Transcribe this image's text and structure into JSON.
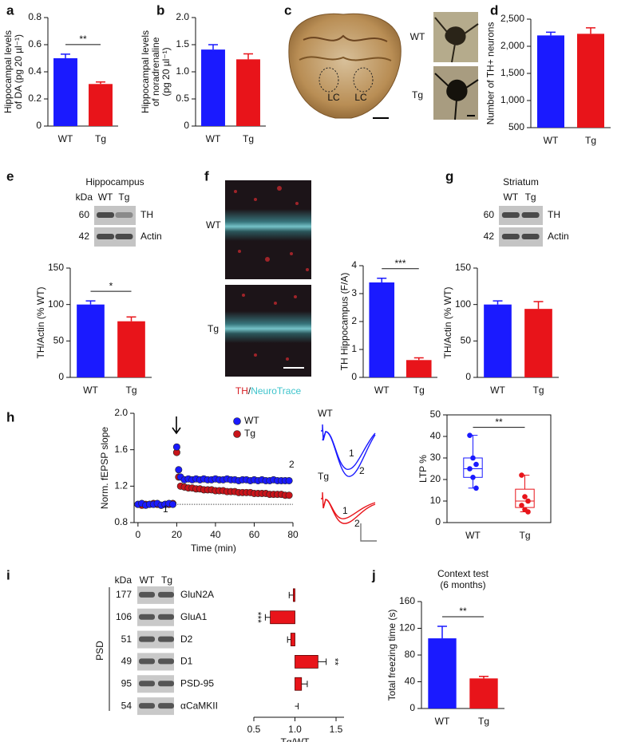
{
  "panel_labels": [
    "a",
    "b",
    "c",
    "d",
    "e",
    "f",
    "g",
    "h",
    "i",
    "j"
  ],
  "chart_data": [
    {
      "type": "bar",
      "categories": [
        "WT",
        "Tg"
      ],
      "values": [
        0.5,
        0.31
      ],
      "errors": [
        0.03,
        0.015
      ],
      "colors": [
        "#1a1aff",
        "#e8141a"
      ],
      "ylabel": [
        "Hippocampal levels",
        "of DA (pg 20 µl⁻¹)"
      ],
      "ylim": [
        0,
        0.8
      ],
      "yticks": [
        0,
        0.2,
        0.4,
        0.6,
        0.8
      ],
      "annotation": "**"
    },
    {
      "type": "bar",
      "categories": [
        "WT",
        "Tg"
      ],
      "values": [
        1.41,
        1.23
      ],
      "errors": [
        0.09,
        0.1
      ],
      "colors": [
        "#1a1aff",
        "#e8141a"
      ],
      "ylabel": [
        "Hippocampal levels",
        "of noradrenaline",
        "(pg 20 µl⁻¹)"
      ],
      "ylim": [
        0,
        2
      ],
      "yticks": [
        0,
        0.5,
        {
          "value": 1,
          "label": "1.0"
        },
        1.5,
        {
          "value": 2,
          "label": "2.0"
        }
      ]
    },
    {
      "type": "bar",
      "categories": [
        "WT",
        "Tg"
      ],
      "values": [
        2200,
        2230
      ],
      "errors": [
        60,
        110
      ],
      "colors": [
        "#1a1aff",
        "#e8141a"
      ],
      "ylabel": [
        "Number of TH+ neurons"
      ],
      "ylim": [
        500,
        2500
      ],
      "yticks": [
        500,
        {
          "value": 1000,
          "label": "1,000"
        },
        {
          "value": 1500,
          "label": "1,500"
        },
        {
          "value": 2000,
          "label": "2,000"
        },
        {
          "value": 2500,
          "label": "2,500"
        }
      ]
    },
    {
      "type": "bar",
      "categories": [
        "WT",
        "Tg"
      ],
      "values": [
        100,
        77
      ],
      "errors": [
        5,
        6
      ],
      "colors": [
        "#1a1aff",
        "#e8141a"
      ],
      "ylabel": [
        "TH/Actin (% WT)"
      ],
      "ylim": [
        0,
        150
      ],
      "yticks": [
        0,
        50,
        100,
        150
      ],
      "annotation": "*"
    },
    {
      "type": "bar",
      "categories": [
        "WT",
        "Tg"
      ],
      "values": [
        3.4,
        0.62
      ],
      "errors": [
        0.15,
        0.08
      ],
      "colors": [
        "#1a1aff",
        "#e8141a"
      ],
      "ylabel": [
        "TH Hippocampus (F/A)"
      ],
      "ylim": [
        0,
        4
      ],
      "yticks": [
        0,
        1,
        2,
        3,
        4
      ],
      "annotation": "***"
    },
    {
      "type": "bar",
      "categories": [
        "WT",
        "Tg"
      ],
      "values": [
        100,
        94
      ],
      "errors": [
        5,
        10
      ],
      "colors": [
        "#1a1aff",
        "#e8141a"
      ],
      "ylabel": [
        "TH/Actin (% WT)"
      ],
      "ylim": [
        0,
        150
      ],
      "yticks": [
        0,
        50,
        100,
        150
      ]
    },
    {
      "type": "scatter",
      "xlabel": "Time (min)",
      "ylabel": [
        "Norm. fEPSP slope"
      ],
      "x": [
        0,
        2,
        4,
        6,
        8,
        10,
        12,
        14,
        16,
        18,
        20,
        21,
        22,
        24,
        26,
        28,
        30,
        32,
        34,
        36,
        38,
        40,
        42,
        44,
        46,
        48,
        50,
        52,
        54,
        56,
        58,
        60,
        62,
        64,
        66,
        68,
        70,
        72,
        74,
        76,
        78
      ],
      "series": [
        {
          "name": "Tg",
          "color": "#c8141a",
          "values": [
            1.0,
            0.99,
            1.0,
            1.0,
            1.01,
            1.0,
            0.99,
            1.0,
            1.0,
            1.01,
            1.57,
            1.3,
            1.2,
            1.19,
            1.18,
            1.18,
            1.17,
            1.17,
            1.16,
            1.16,
            1.16,
            1.15,
            1.15,
            1.15,
            1.14,
            1.14,
            1.14,
            1.13,
            1.13,
            1.13,
            1.13,
            1.12,
            1.12,
            1.12,
            1.12,
            1.11,
            1.11,
            1.11,
            1.11,
            1.1,
            1.1
          ]
        },
        {
          "name": "WT",
          "color": "#1a1aff",
          "values": [
            1.0,
            1.01,
            0.99,
            1.0,
            1.0,
            1.01,
            0.99,
            1.0,
            1.01,
            1.0,
            1.63,
            1.38,
            1.3,
            1.27,
            1.28,
            1.27,
            1.28,
            1.27,
            1.28,
            1.27,
            1.27,
            1.28,
            1.27,
            1.27,
            1.28,
            1.27,
            1.27,
            1.26,
            1.27,
            1.27,
            1.26,
            1.27,
            1.26,
            1.27,
            1.26,
            1.26,
            1.27,
            1.26,
            1.26,
            1.26,
            1.26
          ]
        }
      ],
      "xlim": [
        -2,
        80
      ],
      "xticks": [
        0,
        20,
        40,
        60,
        80
      ],
      "ylim": [
        0.8,
        2
      ],
      "yticks": [
        0.8,
        1.2,
        1.6,
        {
          "value": 2,
          "label": "2.0"
        }
      ],
      "reference": 1,
      "legend": "upper right",
      "annotations": [
        "1",
        "2"
      ]
    },
    {
      "type": "box",
      "categories": [
        "WT",
        "Tg"
      ],
      "colors": [
        "#1a1aff",
        "#e8141a"
      ],
      "ylabel": [
        "LTP %"
      ],
      "boxes": [
        {
          "min": 16,
          "q1": 21,
          "median": 25,
          "q3": 30,
          "max": 40.5,
          "points": [
            40.5,
            30,
            27,
            25,
            21,
            16
          ]
        },
        {
          "min": 5,
          "q1": 7,
          "median": 10,
          "q3": 15.5,
          "max": 22,
          "points": [
            22,
            12,
            10,
            8,
            6,
            5
          ]
        }
      ],
      "ylim": [
        0,
        50
      ],
      "yticks": [
        0,
        10,
        20,
        30,
        40,
        50
      ],
      "annotation": "**"
    },
    {
      "type": "barh",
      "group_label": "PSD",
      "kda_header": "kDa",
      "lanes": [
        "WT",
        "Tg"
      ],
      "kda": [
        177,
        106,
        51,
        49,
        95,
        54
      ],
      "categories": [
        "GluN2A",
        "GluA1",
        "D2",
        "D1",
        "PSD-95",
        "αCaMKII"
      ],
      "values": [
        0.98,
        0.7,
        0.95,
        1.28,
        1.08,
        1.0
      ],
      "errors": [
        0.05,
        0.06,
        0.04,
        0.1,
        0.07,
        0.04
      ],
      "color": "#e8141a",
      "base": 1,
      "xlabel": "Tg/WT",
      "xlim": [
        0.5,
        1.5
      ],
      "xticks": [
        0.5,
        {
          "value": 1,
          "label": "1.0"
        },
        1.5
      ],
      "annotations": [
        "***",
        "**"
      ]
    },
    {
      "type": "bar",
      "title": [
        "Context test",
        "(6 months)"
      ],
      "categories": [
        "WT",
        "Tg"
      ],
      "values": [
        105,
        45
      ],
      "errors": [
        18,
        3
      ],
      "colors": [
        "#1a1aff",
        "#e8141a"
      ],
      "ylabel": [
        "Total freezing time (s)"
      ],
      "ylim": [
        0,
        160
      ],
      "yticks": [
        0,
        40,
        80,
        120,
        160
      ],
      "annotation": "**"
    }
  ],
  "c_images": {
    "labels": [
      "LC",
      "LC"
    ],
    "rows": [
      "WT",
      "Tg"
    ]
  },
  "e_blot": {
    "title": "Hippocampus",
    "kda_header": "kDa",
    "lanes": [
      "WT",
      "Tg"
    ],
    "kda": [
      60,
      42
    ],
    "proteins": [
      "TH",
      "Actin"
    ]
  },
  "f_images": {
    "rows": [
      "WT",
      "Tg"
    ],
    "caption": [
      "TH",
      "/",
      "NeuroTrace"
    ]
  },
  "g_blot": {
    "title": "Striatum",
    "lanes": [
      "WT",
      "Tg"
    ],
    "kda": [
      60,
      42
    ],
    "proteins": [
      "TH",
      "Actin"
    ]
  },
  "h_traces": {
    "rows": [
      "WT",
      "Tg"
    ],
    "labels": [
      "1",
      "2",
      "1",
      "2"
    ]
  }
}
